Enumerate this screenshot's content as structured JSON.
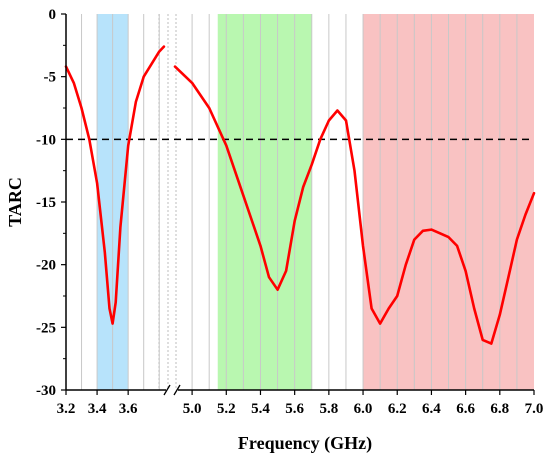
{
  "chart_data": {
    "type": "line",
    "title": "",
    "xlabel": "Frequency (GHz)",
    "ylabel": "TARC",
    "ylim": [
      -30,
      0
    ],
    "y_ticks": [
      0,
      -5,
      -10,
      -15,
      -20,
      -25,
      -30
    ],
    "y_tick_labels": [
      "0",
      "-5",
      "-10",
      "-15",
      "-20",
      "-25",
      "-30"
    ],
    "axis_break": "between 3.6 and 5.0 GHz",
    "segments": [
      {
        "xlim": [
          3.2,
          3.85
        ],
        "x_ticks": [
          3.2,
          3.4,
          3.6
        ],
        "x_tick_labels": [
          "3.2",
          "3.4",
          "3.6"
        ],
        "gridlines": [
          3.3,
          3.4,
          3.5,
          3.6,
          3.7,
          3.8
        ]
      },
      {
        "xlim": [
          4.9,
          7.0
        ],
        "x_ticks": [
          5.0,
          5.2,
          5.4,
          5.6,
          5.8,
          6.0,
          6.2,
          6.4,
          6.6,
          6.8,
          7.0
        ],
        "x_tick_labels": [
          "5.0",
          "5.2",
          "5.4",
          "5.6",
          "5.8",
          "6.0",
          "6.2",
          "6.4",
          "6.6",
          "6.8",
          "7.0"
        ],
        "gridlines": [
          5.0,
          5.1,
          5.2,
          5.3,
          5.4,
          5.5,
          5.6,
          5.7,
          5.8,
          5.9,
          6.0,
          6.1,
          6.2,
          6.3,
          6.4,
          6.5,
          6.6,
          6.7,
          6.8,
          6.9
        ]
      }
    ],
    "bands": [
      {
        "x0": 3.4,
        "x1": 3.6,
        "color": "#b7e3fb"
      },
      {
        "x0": 5.15,
        "x1": 5.7,
        "color": "#b9f7b0"
      },
      {
        "x0": 6.0,
        "x1": 7.0,
        "color": "#f9c2c2"
      }
    ],
    "threshold": {
      "y": -10,
      "style": "dashed",
      "color": "#000000"
    },
    "series": [
      {
        "color": "#ff0000",
        "segments": [
          [
            [
              3.2,
              -4.2
            ],
            [
              3.25,
              -5.5
            ],
            [
              3.3,
              -7.5
            ],
            [
              3.35,
              -10.0
            ],
            [
              3.4,
              -13.5
            ],
            [
              3.45,
              -19.0
            ],
            [
              3.48,
              -23.5
            ],
            [
              3.5,
              -24.7
            ],
            [
              3.52,
              -23.0
            ],
            [
              3.55,
              -17.0
            ],
            [
              3.6,
              -10.5
            ],
            [
              3.65,
              -7.0
            ],
            [
              3.7,
              -5.0
            ],
            [
              3.75,
              -4.0
            ],
            [
              3.8,
              -3.0
            ],
            [
              3.83,
              -2.6
            ]
          ],
          [
            [
              4.9,
              -4.2
            ],
            [
              5.0,
              -5.5
            ],
            [
              5.1,
              -7.5
            ],
            [
              5.2,
              -10.5
            ],
            [
              5.3,
              -14.5
            ],
            [
              5.4,
              -18.5
            ],
            [
              5.45,
              -21.0
            ],
            [
              5.5,
              -22.0
            ],
            [
              5.55,
              -20.5
            ],
            [
              5.6,
              -16.5
            ],
            [
              5.65,
              -13.8
            ],
            [
              5.7,
              -12.0
            ],
            [
              5.75,
              -10.0
            ],
            [
              5.8,
              -8.5
            ],
            [
              5.85,
              -7.7
            ],
            [
              5.9,
              -8.5
            ],
            [
              5.95,
              -12.5
            ],
            [
              6.0,
              -18.5
            ],
            [
              6.05,
              -23.5
            ],
            [
              6.1,
              -24.7
            ],
            [
              6.15,
              -23.5
            ],
            [
              6.2,
              -22.5
            ],
            [
              6.25,
              -20.0
            ],
            [
              6.3,
              -18.0
            ],
            [
              6.35,
              -17.3
            ],
            [
              6.4,
              -17.2
            ],
            [
              6.45,
              -17.5
            ],
            [
              6.5,
              -17.8
            ],
            [
              6.55,
              -18.5
            ],
            [
              6.6,
              -20.5
            ],
            [
              6.65,
              -23.5
            ],
            [
              6.7,
              -26.0
            ],
            [
              6.75,
              -26.3
            ],
            [
              6.8,
              -24.0
            ],
            [
              6.85,
              -21.0
            ],
            [
              6.9,
              -18.0
            ],
            [
              6.95,
              -16.0
            ],
            [
              7.0,
              -14.3
            ]
          ]
        ]
      }
    ]
  }
}
